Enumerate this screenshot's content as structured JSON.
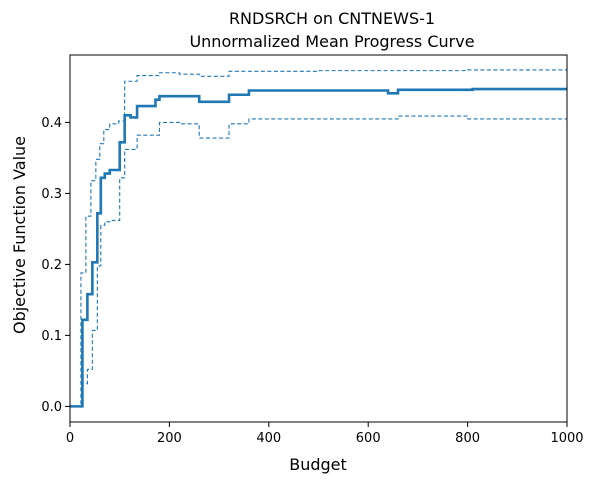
{
  "chart_data": {
    "type": "line",
    "title": "RNDSRCH on CNTNEWS-1",
    "subtitle": "Unnormalized Mean Progress Curve",
    "xlabel": "Budget",
    "ylabel": "Objective Function Value",
    "xlim": [
      0,
      1000
    ],
    "ylim": [
      -0.022,
      0.495
    ],
    "xticks": [
      0,
      200,
      400,
      600,
      800,
      1000
    ],
    "yticks": [
      0.0,
      0.1,
      0.2,
      0.3,
      0.4
    ],
    "grid": false,
    "legend": "none",
    "step": true,
    "color": "#1f77b4",
    "series": [
      {
        "role": "mean",
        "style": "solid",
        "x": [
          0,
          20,
          25,
          35,
          45,
          55,
          62,
          70,
          80,
          100,
          110,
          122,
          135,
          172,
          180,
          260,
          320,
          360,
          640,
          660,
          810,
          1000
        ],
        "y": [
          0.0,
          0.0,
          0.122,
          0.158,
          0.203,
          0.272,
          0.322,
          0.328,
          0.333,
          0.372,
          0.41,
          0.407,
          0.423,
          0.432,
          0.437,
          0.429,
          0.439,
          0.445,
          0.441,
          0.446,
          0.447,
          0.447
        ]
      },
      {
        "role": "upper-bound",
        "style": "dashed",
        "x": [
          0,
          22,
          32,
          42,
          52,
          60,
          68,
          80,
          98,
          110,
          135,
          180,
          220,
          260,
          320,
          500,
          800,
          1000
        ],
        "y": [
          0.0,
          0.188,
          0.268,
          0.318,
          0.348,
          0.37,
          0.39,
          0.398,
          0.402,
          0.458,
          0.466,
          0.47,
          0.468,
          0.465,
          0.472,
          0.473,
          0.474,
          0.47
        ]
      },
      {
        "role": "lower-bound",
        "style": "dashed",
        "x": [
          0,
          25,
          35,
          45,
          55,
          62,
          70,
          85,
          100,
          110,
          135,
          180,
          220,
          260,
          320,
          360,
          660,
          800,
          1000
        ],
        "y": [
          0.0,
          0.032,
          0.052,
          0.107,
          0.198,
          0.255,
          0.26,
          0.262,
          0.322,
          0.362,
          0.382,
          0.4,
          0.398,
          0.378,
          0.398,
          0.405,
          0.409,
          0.405,
          0.398
        ]
      }
    ]
  }
}
